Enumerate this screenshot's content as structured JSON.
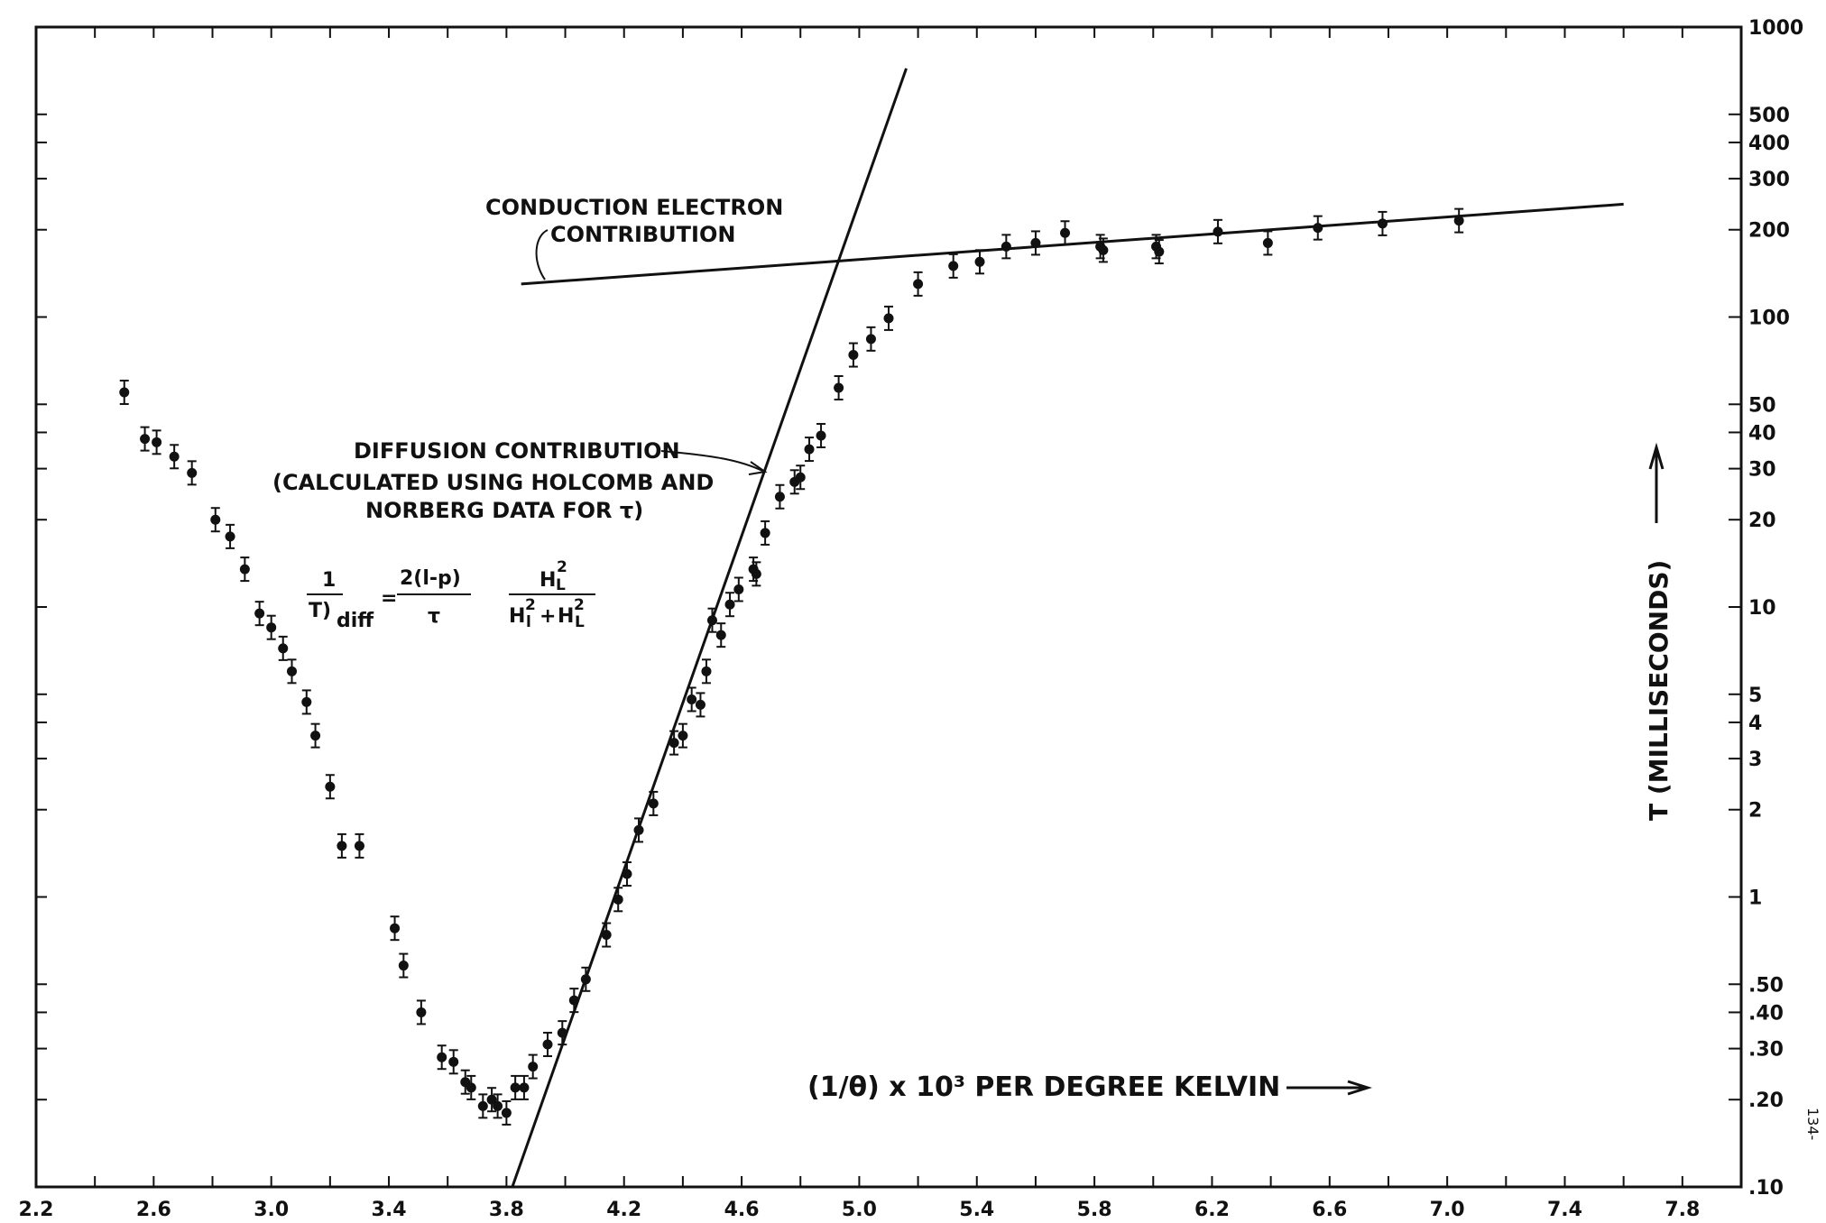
{
  "chart_data": {
    "type": "scatter",
    "title": "",
    "xlabel": "(1/θ) x 10³ PER DEGREE KELVIN",
    "ylabel": "T (MILLISECONDS)",
    "x_scale": "linear",
    "y_scale": "log",
    "xlim": [
      2.2,
      8.0
    ],
    "ylim": [
      0.1,
      1000
    ],
    "x_ticks": [
      2.2,
      2.6,
      3.0,
      3.4,
      3.8,
      4.2,
      4.6,
      5.0,
      5.4,
      5.8,
      6.2,
      6.6,
      7.0,
      7.4,
      7.8
    ],
    "x_tick_labels": [
      "2.2",
      "2.6",
      "3.0",
      "3.4",
      "3.8",
      "4.2",
      "4.6",
      "5.0",
      "5.4",
      "5.8",
      "6.2",
      "6.6",
      "7.0",
      "7.4",
      "7.8"
    ],
    "y_ticks": [
      1000,
      500,
      400,
      300,
      200,
      100,
      50,
      40,
      30,
      20,
      10,
      5,
      4,
      3,
      2,
      1,
      0.5,
      0.4,
      0.3,
      0.2,
      0.1
    ],
    "y_tick_labels": [
      "1000",
      "500",
      "400",
      "300",
      "200",
      "100",
      "50",
      "40",
      "30",
      "20",
      "10",
      "5",
      "4",
      "3",
      "2",
      "1",
      ".50",
      ".40",
      ".30",
      ".20",
      ".10"
    ],
    "grid": false,
    "series": [
      {
        "x": [
          2.5,
          2.57,
          2.61,
          2.67,
          2.73,
          2.81,
          2.86,
          2.91,
          2.96,
          3.0,
          3.04,
          3.07,
          3.12,
          3.15,
          3.2,
          3.24,
          3.3,
          3.42,
          3.45,
          3.51,
          3.58,
          3.62,
          3.66,
          3.68,
          3.72,
          3.75,
          3.77,
          3.8,
          3.83,
          3.86,
          3.89,
          3.94,
          3.99,
          4.03,
          4.07,
          4.14,
          4.18,
          4.21,
          4.25,
          4.3,
          4.37,
          4.4,
          4.43,
          4.46,
          4.48,
          4.5,
          4.53,
          4.56,
          4.59,
          4.64,
          4.65,
          4.68,
          4.73,
          4.78,
          4.8,
          4.83,
          4.87,
          4.93,
          4.98,
          5.04,
          5.1,
          5.2,
          5.32,
          5.41,
          5.5,
          5.6,
          5.7,
          5.82,
          5.83,
          6.01,
          6.02,
          6.22,
          6.39,
          6.56,
          6.78,
          7.04
        ],
        "y": [
          55,
          38,
          37,
          33,
          29,
          20,
          17.5,
          13.5,
          9.5,
          8.5,
          7.2,
          6.0,
          4.7,
          3.6,
          2.4,
          1.5,
          1.5,
          0.78,
          0.58,
          0.4,
          0.28,
          0.27,
          0.23,
          0.22,
          0.19,
          0.2,
          0.19,
          0.18,
          0.22,
          0.22,
          0.26,
          0.31,
          0.34,
          0.44,
          0.52,
          0.74,
          0.98,
          1.2,
          1.7,
          2.1,
          3.4,
          3.6,
          4.8,
          4.6,
          6.0,
          9.0,
          8.0,
          10.2,
          11.5,
          13.5,
          13.0,
          18.0,
          24.0,
          27.0,
          28.0,
          35.0,
          39.0,
          57.0,
          74.0,
          84.0,
          99.0,
          130.0,
          150.0,
          155.0,
          175.0,
          180.0,
          195.0,
          175.0,
          170.0,
          175.0,
          168.0,
          197.0,
          180.0,
          203.0,
          210.0,
          215.0
        ]
      }
    ],
    "lines": [
      {
        "label": "CONDUCTION ELECTRON CONTRIBUTION",
        "x": [
          3.85,
          7.6
        ],
        "y": [
          130,
          245
        ]
      },
      {
        "label": "DIFFUSION CONTRIBUTION",
        "x": [
          3.82,
          5.16
        ],
        "y": [
          0.1,
          720
        ]
      }
    ],
    "annotations": {
      "conduction_1": "CONDUCTION ELECTRON",
      "conduction_2": "CONTRIBUTION",
      "diffusion_1": "DIFFUSION CONTRIBUTION",
      "diffusion_2": "(CALCULATED USING HOLCOMB AND",
      "diffusion_3": "NORBERG DATA FOR τ)",
      "eq_lhs_num": "1",
      "eq_lhs_den": "T)",
      "eq_lhs_sub": "diff",
      "eq_equals": "=",
      "eq_mid_num": "2(l-p)",
      "eq_mid_den": "τ",
      "eq_right_num": "H",
      "eq_right_num_sup": "2",
      "eq_right_num_sub": "L",
      "eq_right_den_1": "H",
      "eq_right_den_1_sup": "2",
      "eq_right_den_1_sub": "l",
      "eq_right_den_plus": "+",
      "eq_right_den_2": "H",
      "eq_right_den_2_sup": "2",
      "eq_right_den_2_sub": "L"
    },
    "page_mark": "134-"
  }
}
